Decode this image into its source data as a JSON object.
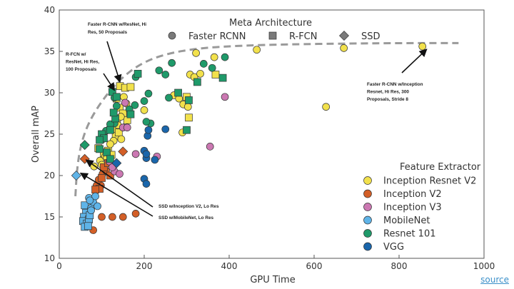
{
  "chart_data": {
    "type": "scatter",
    "xlabel": "GPU Time",
    "ylabel": "Overall mAP",
    "xlim": [
      0,
      1000
    ],
    "ylim": [
      10,
      40
    ],
    "xticks": [
      "0",
      "200",
      "400",
      "600",
      "800",
      "1000"
    ],
    "yticks": [
      "10",
      "15",
      "20",
      "25",
      "30",
      "35",
      "40"
    ],
    "grid": false,
    "frontier": [
      [
        38,
        17.5
      ],
      [
        42,
        21
      ],
      [
        52,
        24
      ],
      [
        70,
        26.5
      ],
      [
        100,
        29
      ],
      [
        140,
        31.5
      ],
      [
        190,
        33.5
      ],
      [
        250,
        34.7
      ],
      [
        330,
        35.4
      ],
      [
        430,
        35.7
      ],
      [
        540,
        35.85
      ],
      [
        680,
        35.95
      ],
      [
        800,
        36
      ],
      [
        940,
        36
      ]
    ],
    "meta_legend": {
      "title": "Meta Architecture",
      "items": [
        {
          "label": "Faster RCNN",
          "shape": "circle"
        },
        {
          "label": "R-FCN",
          "shape": "square"
        },
        {
          "label": "SSD",
          "shape": "diamond"
        }
      ]
    },
    "feature_legend": {
      "title": "Feature Extractor",
      "items": [
        {
          "label": "Inception Resnet V2",
          "color": "#f2e14c"
        },
        {
          "label": "Inception V2",
          "color": "#d35f27"
        },
        {
          "label": "Inception V3",
          "color": "#cb78b2"
        },
        {
          "label": "MobileNet",
          "color": "#5fb4e8"
        },
        {
          "label": "Resnet 101",
          "color": "#1f9a6a"
        },
        {
          "label": "VGG",
          "color": "#1a66ab"
        }
      ]
    },
    "series": [
      {
        "extractor": "Inception Resnet V2",
        "color": "#f2e14c",
        "points": [
          {
            "x": 855,
            "y": 35.6,
            "s": "c"
          },
          {
            "x": 670,
            "y": 35.4,
            "s": "c"
          },
          {
            "x": 465,
            "y": 35.2,
            "s": "c"
          },
          {
            "x": 365,
            "y": 34.3,
            "s": "c"
          },
          {
            "x": 322,
            "y": 34.8,
            "s": "c"
          },
          {
            "x": 628,
            "y": 28.3,
            "s": "c"
          },
          {
            "x": 308,
            "y": 32.2,
            "s": "c"
          },
          {
            "x": 318,
            "y": 31.9,
            "s": "c"
          },
          {
            "x": 332,
            "y": 32.3,
            "s": "c"
          },
          {
            "x": 270,
            "y": 29.7,
            "s": "c"
          },
          {
            "x": 282,
            "y": 29.3,
            "s": "c"
          },
          {
            "x": 292,
            "y": 28.6,
            "s": "c"
          },
          {
            "x": 303,
            "y": 28.3,
            "s": "c"
          },
          {
            "x": 290,
            "y": 25.2,
            "s": "c"
          },
          {
            "x": 200,
            "y": 27.9,
            "s": "c"
          },
          {
            "x": 300,
            "y": 29.5,
            "s": "s"
          },
          {
            "x": 305,
            "y": 27.0,
            "s": "s"
          },
          {
            "x": 368,
            "y": 32.2,
            "s": "s"
          },
          {
            "x": 143,
            "y": 30.8,
            "s": "s"
          },
          {
            "x": 155,
            "y": 30.6,
            "s": "s"
          },
          {
            "x": 168,
            "y": 30.7,
            "s": "s"
          },
          {
            "x": 135,
            "y": 29.3,
            "s": "s"
          },
          {
            "x": 142,
            "y": 28.2,
            "s": "s"
          },
          {
            "x": 150,
            "y": 27.5,
            "s": "s"
          },
          {
            "x": 130,
            "y": 25.6,
            "s": "s"
          },
          {
            "x": 133,
            "y": 24.8,
            "s": "s"
          },
          {
            "x": 140,
            "y": 25.2,
            "s": "s"
          },
          {
            "x": 160,
            "y": 26.7,
            "s": "s"
          },
          {
            "x": 92,
            "y": 23.3,
            "s": "s"
          },
          {
            "x": 105,
            "y": 22.7,
            "s": "s"
          },
          {
            "x": 115,
            "y": 23.0,
            "s": "s"
          },
          {
            "x": 123,
            "y": 22.5,
            "s": "s"
          },
          {
            "x": 136,
            "y": 26.9,
            "s": "s"
          },
          {
            "x": 128,
            "y": 24.2,
            "s": "c"
          },
          {
            "x": 120,
            "y": 23.8,
            "s": "c"
          },
          {
            "x": 108,
            "y": 22.3,
            "s": "c"
          },
          {
            "x": 96,
            "y": 21.8,
            "s": "c"
          },
          {
            "x": 152,
            "y": 29.5,
            "s": "c"
          },
          {
            "x": 158,
            "y": 28.7,
            "s": "c"
          },
          {
            "x": 145,
            "y": 27.1,
            "s": "c"
          },
          {
            "x": 138,
            "y": 26.1,
            "s": "c"
          },
          {
            "x": 82,
            "y": 21.1,
            "s": "c"
          },
          {
            "x": 100,
            "y": 21.3,
            "s": "c"
          },
          {
            "x": 112,
            "y": 22.1,
            "s": "c"
          },
          {
            "x": 146,
            "y": 24.4,
            "s": "c"
          }
        ]
      },
      {
        "extractor": "Inception V2",
        "color": "#d35f27",
        "points": [
          {
            "x": 60,
            "y": 22.0,
            "s": "d"
          },
          {
            "x": 150,
            "y": 22.9,
            "s": "d"
          },
          {
            "x": 180,
            "y": 15.4,
            "s": "c"
          },
          {
            "x": 150,
            "y": 15.0,
            "s": "c"
          },
          {
            "x": 125,
            "y": 15.0,
            "s": "c"
          },
          {
            "x": 100,
            "y": 15.0,
            "s": "c"
          },
          {
            "x": 80,
            "y": 13.4,
            "s": "c"
          },
          {
            "x": 98,
            "y": 18.8,
            "s": "c"
          },
          {
            "x": 88,
            "y": 18.8,
            "s": "c"
          },
          {
            "x": 93,
            "y": 19.5,
            "s": "c"
          },
          {
            "x": 102,
            "y": 20.2,
            "s": "c"
          },
          {
            "x": 110,
            "y": 20.6,
            "s": "c"
          },
          {
            "x": 95,
            "y": 18.4,
            "s": "s"
          },
          {
            "x": 85,
            "y": 18.3,
            "s": "s"
          },
          {
            "x": 100,
            "y": 19.7,
            "s": "s"
          },
          {
            "x": 120,
            "y": 20.0,
            "s": "s"
          },
          {
            "x": 105,
            "y": 21.0,
            "s": "s"
          },
          {
            "x": 115,
            "y": 21.5,
            "s": "s"
          }
        ]
      },
      {
        "extractor": "Inception V3",
        "color": "#cb78b2",
        "points": [
          {
            "x": 390,
            "y": 29.5,
            "s": "c"
          },
          {
            "x": 355,
            "y": 23.5,
            "s": "c"
          },
          {
            "x": 230,
            "y": 22.3,
            "s": "c"
          },
          {
            "x": 180,
            "y": 22.6,
            "s": "c"
          },
          {
            "x": 155,
            "y": 28.8,
            "s": "c"
          },
          {
            "x": 150,
            "y": 25.8,
            "s": "c"
          },
          {
            "x": 160,
            "y": 25.8,
            "s": "c"
          },
          {
            "x": 130,
            "y": 20.5,
            "s": "c"
          },
          {
            "x": 118,
            "y": 21.7,
            "s": "c"
          },
          {
            "x": 125,
            "y": 21.0,
            "s": "c"
          },
          {
            "x": 142,
            "y": 20.2,
            "s": "c"
          }
        ]
      },
      {
        "extractor": "MobileNet",
        "color": "#5fb4e8",
        "points": [
          {
            "x": 40,
            "y": 20.0,
            "s": "d"
          },
          {
            "x": 60,
            "y": 16.4,
            "s": "s"
          },
          {
            "x": 63,
            "y": 15.5,
            "s": "s"
          },
          {
            "x": 58,
            "y": 15.0,
            "s": "s"
          },
          {
            "x": 56,
            "y": 14.5,
            "s": "s"
          },
          {
            "x": 65,
            "y": 14.2,
            "s": "s"
          },
          {
            "x": 70,
            "y": 14.7,
            "s": "s"
          },
          {
            "x": 60,
            "y": 13.8,
            "s": "s"
          },
          {
            "x": 72,
            "y": 15.2,
            "s": "s"
          },
          {
            "x": 68,
            "y": 13.9,
            "s": "s"
          },
          {
            "x": 75,
            "y": 16.1,
            "s": "c"
          },
          {
            "x": 70,
            "y": 17.3,
            "s": "c"
          },
          {
            "x": 80,
            "y": 16.8,
            "s": "c"
          },
          {
            "x": 85,
            "y": 17.5,
            "s": "c"
          },
          {
            "x": 75,
            "y": 15.8,
            "s": "c"
          },
          {
            "x": 90,
            "y": 16.3,
            "s": "c"
          },
          {
            "x": 72,
            "y": 17.0,
            "s": "c"
          }
        ]
      },
      {
        "extractor": "Resnet 101",
        "color": "#1f9a6a",
        "points": [
          {
            "x": 60,
            "y": 23.7,
            "s": "d"
          },
          {
            "x": 390,
            "y": 34.3,
            "s": "c"
          },
          {
            "x": 360,
            "y": 33.0,
            "s": "c"
          },
          {
            "x": 340,
            "y": 33.5,
            "s": "c"
          },
          {
            "x": 250,
            "y": 32.2,
            "s": "c"
          },
          {
            "x": 265,
            "y": 33.6,
            "s": "c"
          },
          {
            "x": 235,
            "y": 32.7,
            "s": "c"
          },
          {
            "x": 210,
            "y": 29.9,
            "s": "c"
          },
          {
            "x": 180,
            "y": 31.9,
            "s": "c"
          },
          {
            "x": 200,
            "y": 29.0,
            "s": "c"
          },
          {
            "x": 258,
            "y": 29.4,
            "s": "c"
          },
          {
            "x": 215,
            "y": 26.3,
            "s": "c"
          },
          {
            "x": 205,
            "y": 26.5,
            "s": "c"
          },
          {
            "x": 178,
            "y": 28.5,
            "s": "c"
          },
          {
            "x": 130,
            "y": 26.3,
            "s": "c"
          },
          {
            "x": 110,
            "y": 25.4,
            "s": "c"
          },
          {
            "x": 120,
            "y": 26.2,
            "s": "c"
          },
          {
            "x": 100,
            "y": 24.3,
            "s": "c"
          },
          {
            "x": 130,
            "y": 29.4,
            "s": "c"
          },
          {
            "x": 135,
            "y": 28.4,
            "s": "c"
          },
          {
            "x": 165,
            "y": 28.0,
            "s": "c"
          },
          {
            "x": 385,
            "y": 31.8,
            "s": "s"
          },
          {
            "x": 325,
            "y": 31.3,
            "s": "s"
          },
          {
            "x": 280,
            "y": 30.0,
            "s": "s"
          },
          {
            "x": 305,
            "y": 29.1,
            "s": "s"
          },
          {
            "x": 300,
            "y": 25.5,
            "s": "s"
          },
          {
            "x": 185,
            "y": 32.3,
            "s": "s"
          },
          {
            "x": 125,
            "y": 30.1,
            "s": "s"
          },
          {
            "x": 135,
            "y": 29.5,
            "s": "s"
          },
          {
            "x": 132,
            "y": 26.9,
            "s": "s"
          },
          {
            "x": 120,
            "y": 25.5,
            "s": "s"
          },
          {
            "x": 100,
            "y": 25.0,
            "s": "s"
          },
          {
            "x": 105,
            "y": 24.5,
            "s": "s"
          },
          {
            "x": 95,
            "y": 24.3,
            "s": "s"
          },
          {
            "x": 95,
            "y": 23.2,
            "s": "s"
          },
          {
            "x": 112,
            "y": 22.8,
            "s": "s"
          },
          {
            "x": 120,
            "y": 22.0,
            "s": "s"
          },
          {
            "x": 168,
            "y": 27.4,
            "s": "s"
          },
          {
            "x": 128,
            "y": 27.6,
            "s": "s"
          }
        ]
      },
      {
        "extractor": "VGG",
        "color": "#1a66ab",
        "points": [
          {
            "x": 135,
            "y": 21.5,
            "s": "d"
          },
          {
            "x": 208,
            "y": 24.8,
            "s": "c"
          },
          {
            "x": 210,
            "y": 25.5,
            "s": "c"
          },
          {
            "x": 250,
            "y": 25.6,
            "s": "c"
          },
          {
            "x": 200,
            "y": 23.0,
            "s": "c"
          },
          {
            "x": 205,
            "y": 22.1,
            "s": "c"
          },
          {
            "x": 200,
            "y": 19.6,
            "s": "c"
          },
          {
            "x": 205,
            "y": 19.0,
            "s": "c"
          },
          {
            "x": 225,
            "y": 21.9,
            "s": "c"
          },
          {
            "x": 205,
            "y": 22.6,
            "s": "c"
          }
        ]
      }
    ],
    "annotations": [
      {
        "lines": [
          "Faster R-CNN w/ResNet, Hi",
          "Res, 50 Proposals"
        ],
        "target": [
          143,
          31.3
        ]
      },
      {
        "lines": [
          "R-FCN w/",
          "ResNet, Hi Res,",
          "100 Proposals"
        ],
        "target": [
          130,
          30.3
        ]
      },
      {
        "lines": [
          "Faster R-CNN w/Inception",
          "Resnet, Hi Res, 300",
          "Proposals, Stride 8"
        ],
        "target": [
          855,
          35.6
        ]
      },
      {
        "lines": [
          "SSD w/Inception V2, Lo Res"
        ],
        "target": [
          63,
          21.9
        ]
      },
      {
        "lines": [
          "SSD w/MobileNet, Lo Res"
        ],
        "target": [
          50,
          20.3
        ]
      }
    ]
  },
  "footer": {
    "source_label": "source"
  }
}
